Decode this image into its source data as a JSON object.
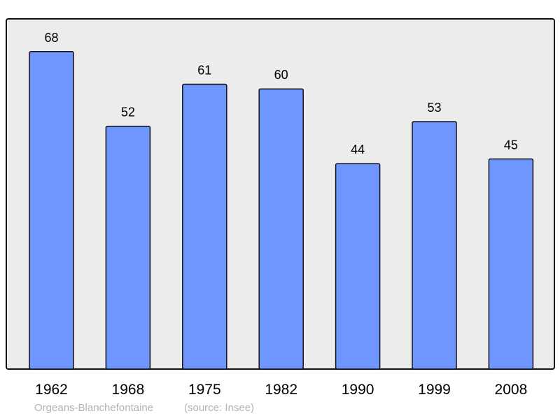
{
  "chart_data": {
    "type": "bar",
    "categories": [
      "1962",
      "1968",
      "1975",
      "1982",
      "1990",
      "1999",
      "2008"
    ],
    "values": [
      68,
      52,
      61,
      60,
      44,
      53,
      45
    ],
    "title": "",
    "xlabel": "",
    "ylabel": "",
    "ylim": [
      0,
      75
    ],
    "grid": false,
    "bar_color": "#6f96ff",
    "background_color": "#ececec"
  },
  "footer": {
    "place": "Orgeans-Blanchefontaine",
    "source": "(source: Insee)"
  }
}
